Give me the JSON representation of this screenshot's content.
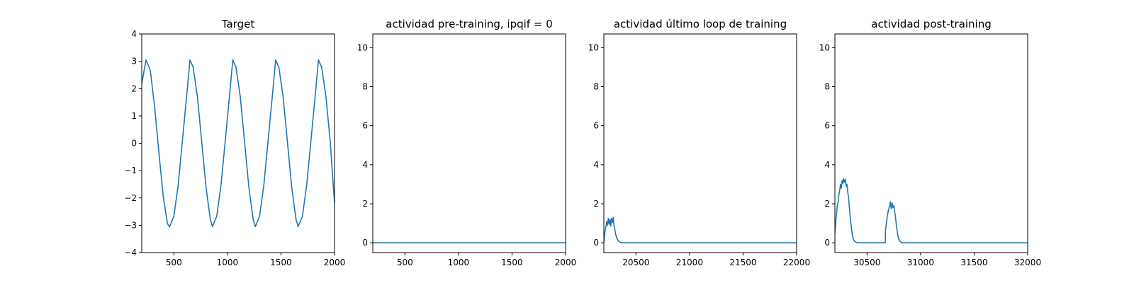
{
  "chart_data": [
    {
      "type": "line",
      "title": "Target",
      "xlabel": "",
      "ylabel": "",
      "xlim": [
        200,
        2000
      ],
      "ylim": [
        -4,
        4
      ],
      "xticks": [
        500,
        1000,
        1500,
        2000
      ],
      "xtick_labels": [
        "500",
        "1000",
        "1500",
        "2000"
      ],
      "yticks": [
        -4,
        -3,
        -2,
        -1,
        0,
        1,
        2,
        3,
        4
      ],
      "ytick_labels": [
        "−4",
        "−3",
        "−2",
        "−1",
        "0",
        "1",
        "2",
        "3",
        "4"
      ],
      "grid": false,
      "color": "#1f77b4",
      "series": [
        {
          "values": [
            [
              200,
              2.18
            ],
            [
              240,
              3.05
            ],
            [
              280,
              2.67
            ],
            [
              320,
              1.34
            ],
            [
              360,
              -0.33
            ],
            [
              400,
              -1.93
            ],
            [
              440,
              -2.94
            ],
            [
              460,
              -3.05
            ],
            [
              500,
              -2.67
            ],
            [
              540,
              -1.53
            ],
            [
              580,
              0.11
            ],
            [
              620,
              1.76
            ],
            [
              650,
              3.05
            ],
            [
              680,
              2.78
            ],
            [
              720,
              1.7
            ],
            [
              760,
              0.05
            ],
            [
              800,
              -1.6
            ],
            [
              840,
              -2.78
            ],
            [
              860,
              -3.05
            ],
            [
              900,
              -2.67
            ],
            [
              940,
              -1.53
            ],
            [
              980,
              0.11
            ],
            [
              1020,
              1.76
            ],
            [
              1050,
              3.05
            ],
            [
              1080,
              2.78
            ],
            [
              1120,
              1.7
            ],
            [
              1160,
              0.05
            ],
            [
              1200,
              -1.6
            ],
            [
              1240,
              -2.78
            ],
            [
              1260,
              -3.05
            ],
            [
              1300,
              -2.67
            ],
            [
              1340,
              -1.53
            ],
            [
              1380,
              0.11
            ],
            [
              1420,
              1.76
            ],
            [
              1450,
              3.05
            ],
            [
              1480,
              2.78
            ],
            [
              1520,
              1.7
            ],
            [
              1560,
              0.05
            ],
            [
              1600,
              -1.6
            ],
            [
              1640,
              -2.78
            ],
            [
              1660,
              -3.05
            ],
            [
              1700,
              -2.67
            ],
            [
              1740,
              -1.53
            ],
            [
              1780,
              0.11
            ],
            [
              1820,
              1.76
            ],
            [
              1850,
              3.05
            ],
            [
              1880,
              2.78
            ],
            [
              1920,
              1.7
            ],
            [
              1960,
              0.05
            ],
            [
              2000,
              -2.2
            ]
          ]
        }
      ]
    },
    {
      "type": "line",
      "title": "actividad pre-training, ipqif = 0",
      "xlabel": "",
      "ylabel": "",
      "xlim": [
        200,
        2000
      ],
      "ylim": [
        -0.5,
        10.7
      ],
      "xticks": [
        500,
        1000,
        1500,
        2000
      ],
      "xtick_labels": [
        "500",
        "1000",
        "1500",
        "2000"
      ],
      "yticks": [
        0,
        2,
        4,
        6,
        8,
        10
      ],
      "ytick_labels": [
        "0",
        "2",
        "4",
        "6",
        "8",
        "10"
      ],
      "grid": false,
      "color": "#1f77b4",
      "series": [
        {
          "values": [
            [
              200,
              0
            ],
            [
              2000,
              0
            ]
          ]
        }
      ]
    },
    {
      "type": "line",
      "title": "actividad último loop de training",
      "xlabel": "",
      "ylabel": "",
      "xlim": [
        20200,
        22000
      ],
      "ylim": [
        -0.5,
        10.7
      ],
      "xticks": [
        20500,
        21000,
        21500,
        22000
      ],
      "xtick_labels": [
        "20500",
        "21000",
        "21500",
        "22000"
      ],
      "yticks": [
        0,
        2,
        4,
        6,
        8,
        10
      ],
      "ytick_labels": [
        "0",
        "2",
        "4",
        "6",
        "8",
        "10"
      ],
      "grid": false,
      "color": "#1f77b4",
      "series": [
        {
          "values": [
            [
              20200,
              0
            ],
            [
              20205,
              0.35
            ],
            [
              20212,
              0.6
            ],
            [
              20220,
              0.85
            ],
            [
              20228,
              1.1
            ],
            [
              20235,
              0.9
            ],
            [
              20242,
              1.25
            ],
            [
              20250,
              0.95
            ],
            [
              20258,
              1.2
            ],
            [
              20265,
              0.85
            ],
            [
              20272,
              1.25
            ],
            [
              20280,
              1.05
            ],
            [
              20288,
              1.3
            ],
            [
              20295,
              0.85
            ],
            [
              20302,
              0.7
            ],
            [
              20310,
              0.45
            ],
            [
              20320,
              0.25
            ],
            [
              20335,
              0.1
            ],
            [
              20350,
              0.03
            ],
            [
              20380,
              0
            ],
            [
              22000,
              0
            ]
          ]
        }
      ]
    },
    {
      "type": "line",
      "title": "actividad post-training",
      "xlabel": "",
      "ylabel": "",
      "xlim": [
        30200,
        32000
      ],
      "ylim": [
        -0.5,
        10.7
      ],
      "xticks": [
        30500,
        31000,
        31500,
        32000
      ],
      "xtick_labels": [
        "30500",
        "31000",
        "31500",
        "32000"
      ],
      "yticks": [
        0,
        2,
        4,
        6,
        8,
        10
      ],
      "ytick_labels": [
        "0",
        "2",
        "4",
        "6",
        "8",
        "10"
      ],
      "grid": false,
      "color": "#1f77b4",
      "series": [
        {
          "values": [
            [
              30200,
              0.5
            ],
            [
              30208,
              1.1
            ],
            [
              30215,
              1.5
            ],
            [
              30222,
              1.9
            ],
            [
              30230,
              2.1
            ],
            [
              30238,
              2.5
            ],
            [
              30245,
              2.7
            ],
            [
              30252,
              3.0
            ],
            [
              30260,
              2.8
            ],
            [
              30268,
              3.2
            ],
            [
              30275,
              3.05
            ],
            [
              30282,
              3.3
            ],
            [
              30290,
              3.1
            ],
            [
              30298,
              3.25
            ],
            [
              30305,
              2.9
            ],
            [
              30312,
              3.0
            ],
            [
              30320,
              2.6
            ],
            [
              30328,
              2.3
            ],
            [
              30335,
              1.8
            ],
            [
              30345,
              1.2
            ],
            [
              30355,
              0.7
            ],
            [
              30365,
              0.35
            ],
            [
              30375,
              0.15
            ],
            [
              30390,
              0.05
            ],
            [
              30410,
              0
            ],
            [
              30670,
              0
            ],
            [
              30672,
              0.6
            ],
            [
              30680,
              1.0
            ],
            [
              30690,
              1.4
            ],
            [
              30700,
              1.7
            ],
            [
              30710,
              1.9
            ],
            [
              30718,
              2.1
            ],
            [
              30726,
              1.75
            ],
            [
              30734,
              2.05
            ],
            [
              30742,
              1.8
            ],
            [
              30750,
              1.9
            ],
            [
              30758,
              1.6
            ],
            [
              30766,
              1.3
            ],
            [
              30775,
              0.85
            ],
            [
              30785,
              0.45
            ],
            [
              30795,
              0.2
            ],
            [
              30810,
              0.06
            ],
            [
              30830,
              0
            ],
            [
              32000,
              0
            ]
          ]
        }
      ]
    }
  ]
}
